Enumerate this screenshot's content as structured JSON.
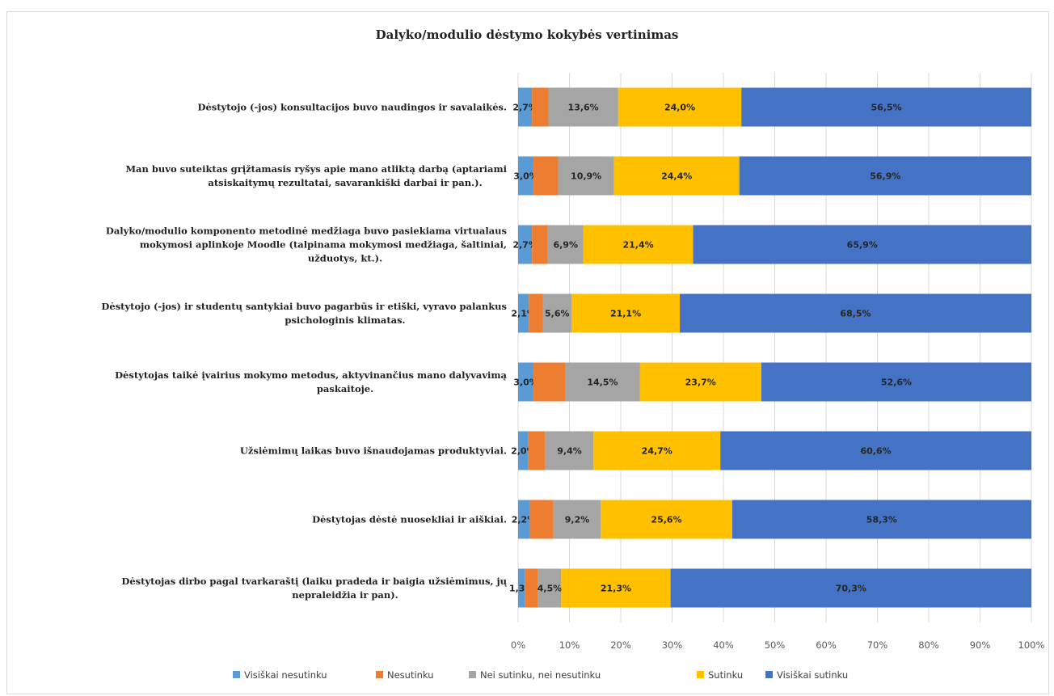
{
  "chart_data": {
    "type": "bar",
    "orientation": "horizontal-stacked-100",
    "title": "Dalyko/modulio dėstymo kokybės vertinimas",
    "categories": [
      [
        "Dėstytojo (-jos) konsultacijos buvo naudingos ir savalaikės."
      ],
      [
        "Man buvo suteiktas grįžtamasis ryšys apie mano atliktą darbą (aptariami",
        "atsiskaitymų rezultatai, savarankiški darbai ir pan.)."
      ],
      [
        "Dalyko/modulio komponento metodinė medžiaga buvo pasiekiama virtualaus",
        "mokymosi aplinkoje Moodle (talpinama mokymosi medžiaga, šaltiniai,",
        "užduotys, kt.)."
      ],
      [
        "Dėstytojo (-jos) ir studentų santykiai buvo pagarbūs ir etiški, vyravo palankus",
        "psichologinis klimatas."
      ],
      [
        "Dėstytojas taikė įvairius mokymo metodus, aktyvinančius mano dalyvavimą",
        "paskaitoje."
      ],
      [
        "Užsiėmimų laikas buvo išnaudojamas produktyviai."
      ],
      [
        "Dėstytojas dėstė nuosekliai ir aiškiai."
      ],
      [
        "Dėstytojas dirbo pagal tvarkaraštį (laiku pradeda ir baigia užsiėmimus, jų",
        "nepraleidžia ir pan)."
      ]
    ],
    "series": [
      {
        "name": "Visiškai nesutinku",
        "color": "#5b9bd5",
        "values": [
          2.7,
          3.0,
          2.7,
          2.1,
          3.0,
          2.0,
          2.2,
          1.3
        ]
      },
      {
        "name": "Nesutinku",
        "color": "#ed7d31",
        "values": [
          3.2,
          4.8,
          3.1,
          2.7,
          6.2,
          3.3,
          4.7,
          2.6
        ]
      },
      {
        "name": "Nei sutinku, nei nesutinku",
        "color": "#a5a5a5",
        "values": [
          13.6,
          10.9,
          6.9,
          5.6,
          14.5,
          9.4,
          9.2,
          4.5
        ]
      },
      {
        "name": "Sutinku",
        "color": "#ffc000",
        "values": [
          24.0,
          24.4,
          21.4,
          21.1,
          23.7,
          24.7,
          25.6,
          21.3
        ]
      },
      {
        "name": "Visiškai sutinku",
        "color": "#4472c4",
        "values": [
          56.5,
          56.9,
          65.9,
          68.5,
          52.6,
          60.6,
          58.3,
          70.3
        ]
      }
    ],
    "data_labels": [
      [
        "2,7%",
        "",
        "13,6%",
        "24,0%",
        "56,5%"
      ],
      [
        "3,0%",
        "",
        "10,9%",
        "24,4%",
        "56,9%"
      ],
      [
        "2,7%",
        "",
        "6,9%",
        "21,4%",
        "65,9%"
      ],
      [
        "2,1%",
        "",
        "5,6%",
        "21,1%",
        "68,5%"
      ],
      [
        "3,0%",
        "",
        "14,5%",
        "23,7%",
        "52,6%"
      ],
      [
        "2,0%",
        "",
        "9,4%",
        "24,7%",
        "60,6%"
      ],
      [
        "2,2%",
        "",
        "9,2%",
        "25,6%",
        "58,3%"
      ],
      [
        "1,3%",
        "",
        "4,5%",
        "21,3%",
        "70,3%"
      ]
    ],
    "x_ticks": [
      "0%",
      "10%",
      "20%",
      "30%",
      "40%",
      "50%",
      "60%",
      "70%",
      "80%",
      "90%",
      "100%"
    ],
    "xlim": [
      0,
      100
    ],
    "grid": true,
    "legend_position": "bottom"
  }
}
